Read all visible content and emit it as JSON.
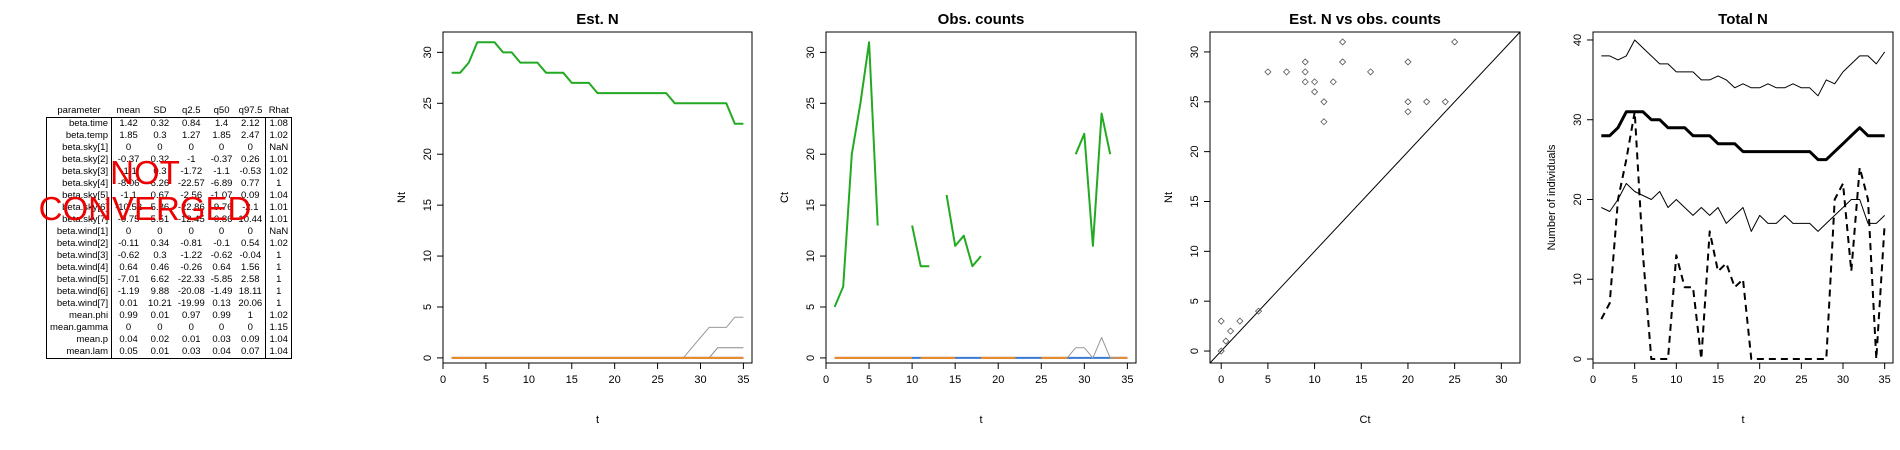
{
  "table": {
    "headers": [
      "parameter",
      "mean",
      "SD",
      "q2.5",
      "q50",
      "q97.5",
      "Rhat"
    ],
    "rows": [
      [
        "beta.time",
        "1.42",
        "0.32",
        "0.84",
        "1.4",
        "2.12",
        "1.08"
      ],
      [
        "beta.temp",
        "1.85",
        "0.3",
        "1.27",
        "1.85",
        "2.47",
        "1.02"
      ],
      [
        "beta.sky[1]",
        "0",
        "0",
        "0",
        "0",
        "0",
        "NaN"
      ],
      [
        "beta.sky[2]",
        "-0.37",
        "0.32",
        "-1",
        "-0.37",
        "0.26",
        "1.01"
      ],
      [
        "beta.sky[3]",
        "-1.1",
        "0.3",
        "-1.72",
        "-1.1",
        "-0.53",
        "1.02"
      ],
      [
        "beta.sky[4]",
        "-8.06",
        "6.26",
        "-22.57",
        "-6.89",
        "0.77",
        "1"
      ],
      [
        "beta.sky[5]",
        "-1.1",
        "0.67",
        "-2.56",
        "-1.07",
        "0.09",
        "1.04"
      ],
      [
        "beta.sky[6]",
        "-10.52",
        "5.86",
        "-22.86",
        "-9.76",
        "-2.1",
        "1.01"
      ],
      [
        "beta.sky[7]",
        "-0.75",
        "5.51",
        "-12.45",
        "-0.86",
        "10.44",
        "1.01"
      ],
      [
        "beta.wind[1]",
        "0",
        "0",
        "0",
        "0",
        "0",
        "NaN"
      ],
      [
        "beta.wind[2]",
        "-0.11",
        "0.34",
        "-0.81",
        "-0.1",
        "0.54",
        "1.02"
      ],
      [
        "beta.wind[3]",
        "-0.62",
        "0.3",
        "-1.22",
        "-0.62",
        "-0.04",
        "1"
      ],
      [
        "beta.wind[4]",
        "0.64",
        "0.46",
        "-0.26",
        "0.64",
        "1.56",
        "1"
      ],
      [
        "beta.wind[5]",
        "-7.01",
        "6.62",
        "-22.33",
        "-5.85",
        "2.58",
        "1"
      ],
      [
        "beta.wind[6]",
        "-1.19",
        "9.88",
        "-20.08",
        "-1.49",
        "18.11",
        "1"
      ],
      [
        "beta.wind[7]",
        "0.01",
        "10.21",
        "-19.99",
        "0.13",
        "20.06",
        "1"
      ],
      [
        "mean.phi",
        "0.99",
        "0.01",
        "0.97",
        "0.99",
        "1",
        "1.02"
      ],
      [
        "mean.gamma",
        "0",
        "0",
        "0",
        "0",
        "0",
        "1.15"
      ],
      [
        "mean.p",
        "0.04",
        "0.02",
        "0.01",
        "0.03",
        "0.09",
        "1.04"
      ],
      [
        "mean.lam",
        "0.05",
        "0.01",
        "0.03",
        "0.04",
        "0.07",
        "1.04"
      ]
    ],
    "overlay_text": "NOT CONVERGED",
    "overlay_color": "#ee0000"
  },
  "chart_data": [
    {
      "type": "line",
      "title": "Est. N",
      "xlabel": "t",
      "ylabel": "Nt",
      "xlim": [
        0,
        36
      ],
      "ylim": [
        -0.5,
        32
      ],
      "xticks": [
        0,
        5,
        10,
        15,
        20,
        25,
        30,
        35
      ],
      "yticks": [
        0,
        5,
        10,
        15,
        20,
        25,
        30
      ],
      "series": [
        {
          "color": "#22aa22",
          "width": 2,
          "x": [
            1,
            2,
            3,
            4,
            5,
            6,
            7,
            8,
            9,
            10,
            11,
            12,
            13,
            14,
            15,
            16,
            17,
            18,
            19,
            20,
            21,
            22,
            23,
            24,
            25,
            26,
            27,
            28,
            29,
            30,
            31,
            32,
            33,
            34,
            35
          ],
          "y": [
            28,
            28,
            29,
            31,
            31,
            31,
            30,
            30,
            29,
            29,
            29,
            28,
            28,
            28,
            27,
            27,
            27,
            26,
            26,
            26,
            26,
            26,
            26,
            26,
            26,
            26,
            25,
            25,
            25,
            25,
            25,
            25,
            25,
            23,
            23
          ]
        },
        {
          "color": "#999999",
          "width": 1,
          "x": [
            27,
            28,
            29,
            30,
            31,
            32,
            33,
            34,
            35
          ],
          "y": [
            0,
            0,
            1,
            2,
            3,
            3,
            3,
            4,
            4
          ]
        },
        {
          "color": "#888888",
          "width": 1,
          "x": [
            29,
            30,
            31,
            32,
            33,
            34,
            35
          ],
          "y": [
            0,
            0,
            0,
            1,
            1,
            1,
            1
          ]
        },
        {
          "color": "#3a7ad0",
          "width": 2,
          "x": [
            1,
            35
          ],
          "y": [
            0,
            0
          ]
        },
        {
          "color": "#f08a20",
          "width": 2,
          "x": [
            1,
            35
          ],
          "y": [
            0,
            0
          ]
        }
      ]
    },
    {
      "type": "line",
      "title": "Obs. counts",
      "xlabel": "t",
      "ylabel": "Ct",
      "xlim": [
        0,
        36
      ],
      "ylim": [
        -0.5,
        32
      ],
      "xticks": [
        0,
        5,
        10,
        15,
        20,
        25,
        30,
        35
      ],
      "yticks": [
        0,
        5,
        10,
        15,
        20,
        25,
        30
      ],
      "series": [
        {
          "color": "#22aa22",
          "width": 2,
          "x": [
            1,
            2,
            3,
            4,
            5,
            6
          ],
          "y": [
            5,
            7,
            20,
            25,
            31,
            13
          ]
        },
        {
          "color": "#22aa22",
          "width": 2,
          "x": [
            10,
            11,
            12
          ],
          "y": [
            13,
            9,
            9
          ]
        },
        {
          "color": "#22aa22",
          "width": 2,
          "x": [
            14,
            15,
            16,
            17,
            18
          ],
          "y": [
            16,
            11,
            12,
            9,
            10
          ]
        },
        {
          "color": "#22aa22",
          "width": 2,
          "x": [
            29,
            30,
            31,
            32,
            33
          ],
          "y": [
            20,
            22,
            11,
            24,
            20
          ]
        },
        {
          "color": "#3a7ad0",
          "width": 2,
          "x": [
            1,
            35
          ],
          "y": [
            0,
            0
          ]
        },
        {
          "color": "#f08a20",
          "width": 2,
          "x": [
            1,
            2,
            3,
            4,
            5,
            6,
            7,
            8,
            9,
            10
          ],
          "y": [
            0,
            0,
            0,
            0,
            0,
            0,
            0,
            0,
            0,
            0
          ]
        },
        {
          "color": "#f08a20",
          "width": 2,
          "x": [
            11,
            12,
            13,
            14,
            15
          ],
          "y": [
            0,
            0,
            0,
            0,
            0
          ]
        },
        {
          "color": "#f08a20",
          "width": 2,
          "x": [
            18,
            19,
            20,
            21,
            22
          ],
          "y": [
            0,
            0,
            0,
            0,
            0
          ]
        },
        {
          "color": "#f08a20",
          "width": 2,
          "x": [
            25,
            26,
            27,
            28
          ],
          "y": [
            0,
            0,
            0,
            0
          ]
        },
        {
          "color": "#f08a20",
          "width": 2,
          "x": [
            33,
            34,
            35
          ],
          "y": [
            0,
            0,
            0
          ]
        },
        {
          "color": "#999999",
          "width": 1,
          "x": [
            28,
            29,
            30,
            31,
            32,
            33,
            34
          ],
          "y": [
            0,
            1,
            1,
            0,
            2,
            0,
            0
          ]
        }
      ]
    },
    {
      "type": "scatter",
      "title": "Est. N vs obs. counts",
      "xlabel": "Ct",
      "ylabel": "Nt",
      "xlim": [
        -1.2,
        32
      ],
      "ylim": [
        -1.2,
        32
      ],
      "xticks": [
        0,
        5,
        10,
        15,
        20,
        25,
        30
      ],
      "yticks": [
        0,
        5,
        10,
        15,
        20,
        25,
        30
      ],
      "abline": {
        "intercept": 0,
        "slope": 1
      },
      "x": [
        0,
        0,
        0.5,
        1,
        2,
        4,
        5,
        7,
        9,
        9,
        9,
        10,
        10,
        11,
        11,
        12,
        13,
        13,
        16,
        20,
        20,
        20,
        22,
        24,
        25
      ],
      "y": [
        0,
        3,
        1,
        2,
        3,
        4,
        28,
        28,
        29,
        28,
        27,
        26,
        27,
        25,
        23,
        27,
        29,
        31,
        28,
        29,
        25,
        24,
        25,
        25,
        31
      ]
    },
    {
      "type": "line",
      "title": "Total N",
      "xlabel": "t",
      "ylabel": "Number of individuals",
      "xlim": [
        0,
        36
      ],
      "ylim": [
        -0.5,
        41
      ],
      "xticks": [
        0,
        5,
        10,
        15,
        20,
        25,
        30,
        35
      ],
      "yticks": [
        0,
        10,
        20,
        30,
        40
      ],
      "series": [
        {
          "color": "#000000",
          "width": 1,
          "x": [
            1,
            2,
            3,
            4,
            5,
            6,
            7,
            8,
            9,
            10,
            11,
            12,
            13,
            14,
            15,
            16,
            17,
            18,
            19,
            20,
            21,
            22,
            23,
            24,
            25,
            26,
            27,
            28,
            29,
            30,
            31,
            32,
            33,
            34,
            35
          ],
          "y": [
            38,
            38,
            37.5,
            38,
            40,
            39,
            38,
            37,
            37,
            36,
            36,
            36,
            35,
            35,
            35.5,
            35,
            34,
            34.5,
            34,
            34,
            34.5,
            34,
            34,
            34.5,
            34,
            34,
            33,
            35,
            34.5,
            36,
            37,
            38,
            38,
            37,
            38.5
          ]
        },
        {
          "color": "#000000",
          "width": 3,
          "x": [
            1,
            2,
            3,
            4,
            5,
            6,
            7,
            8,
            9,
            10,
            11,
            12,
            13,
            14,
            15,
            16,
            17,
            18,
            19,
            20,
            21,
            22,
            23,
            24,
            25,
            26,
            27,
            28,
            29,
            30,
            31,
            32,
            33,
            34,
            35
          ],
          "y": [
            28,
            28,
            29,
            31,
            31,
            31,
            30,
            30,
            29,
            29,
            29,
            28,
            28,
            28,
            27,
            27,
            27,
            26,
            26,
            26,
            26,
            26,
            26,
            26,
            26,
            26,
            25,
            25,
            26,
            27,
            28,
            29,
            28,
            28,
            28
          ]
        },
        {
          "color": "#000000",
          "width": 1,
          "x": [
            1,
            2,
            3,
            4,
            5,
            6,
            7,
            8,
            9,
            10,
            11,
            12,
            13,
            14,
            15,
            16,
            17,
            18,
            19,
            20,
            21,
            22,
            23,
            24,
            25,
            26,
            27,
            28,
            29,
            30,
            31,
            32,
            33,
            34,
            35
          ],
          "y": [
            19,
            18.5,
            20,
            22,
            21,
            20.5,
            20,
            21,
            19,
            20,
            19,
            18,
            19,
            18,
            19,
            17,
            18,
            19,
            16,
            18,
            17,
            17,
            18,
            17,
            17,
            17,
            16,
            17,
            18,
            19,
            20,
            20,
            17,
            17,
            18
          ]
        },
        {
          "color": "#000000",
          "width": 2,
          "dash": true,
          "x": [
            1,
            2,
            3,
            4,
            5,
            6,
            7,
            8,
            9,
            10,
            11,
            12,
            13,
            14,
            15,
            16,
            17,
            18,
            19,
            20,
            21,
            22,
            23,
            24,
            25,
            26,
            27,
            28,
            29,
            30,
            31,
            32,
            33,
            34,
            35
          ],
          "y": [
            5,
            7,
            20,
            25,
            31,
            13,
            0,
            0,
            0,
            13,
            9,
            9,
            0,
            16,
            11,
            12,
            9,
            10,
            0,
            0,
            0,
            0,
            0,
            0,
            0,
            0,
            0,
            0,
            20,
            22,
            11,
            24,
            20,
            0,
            17
          ]
        }
      ]
    }
  ]
}
